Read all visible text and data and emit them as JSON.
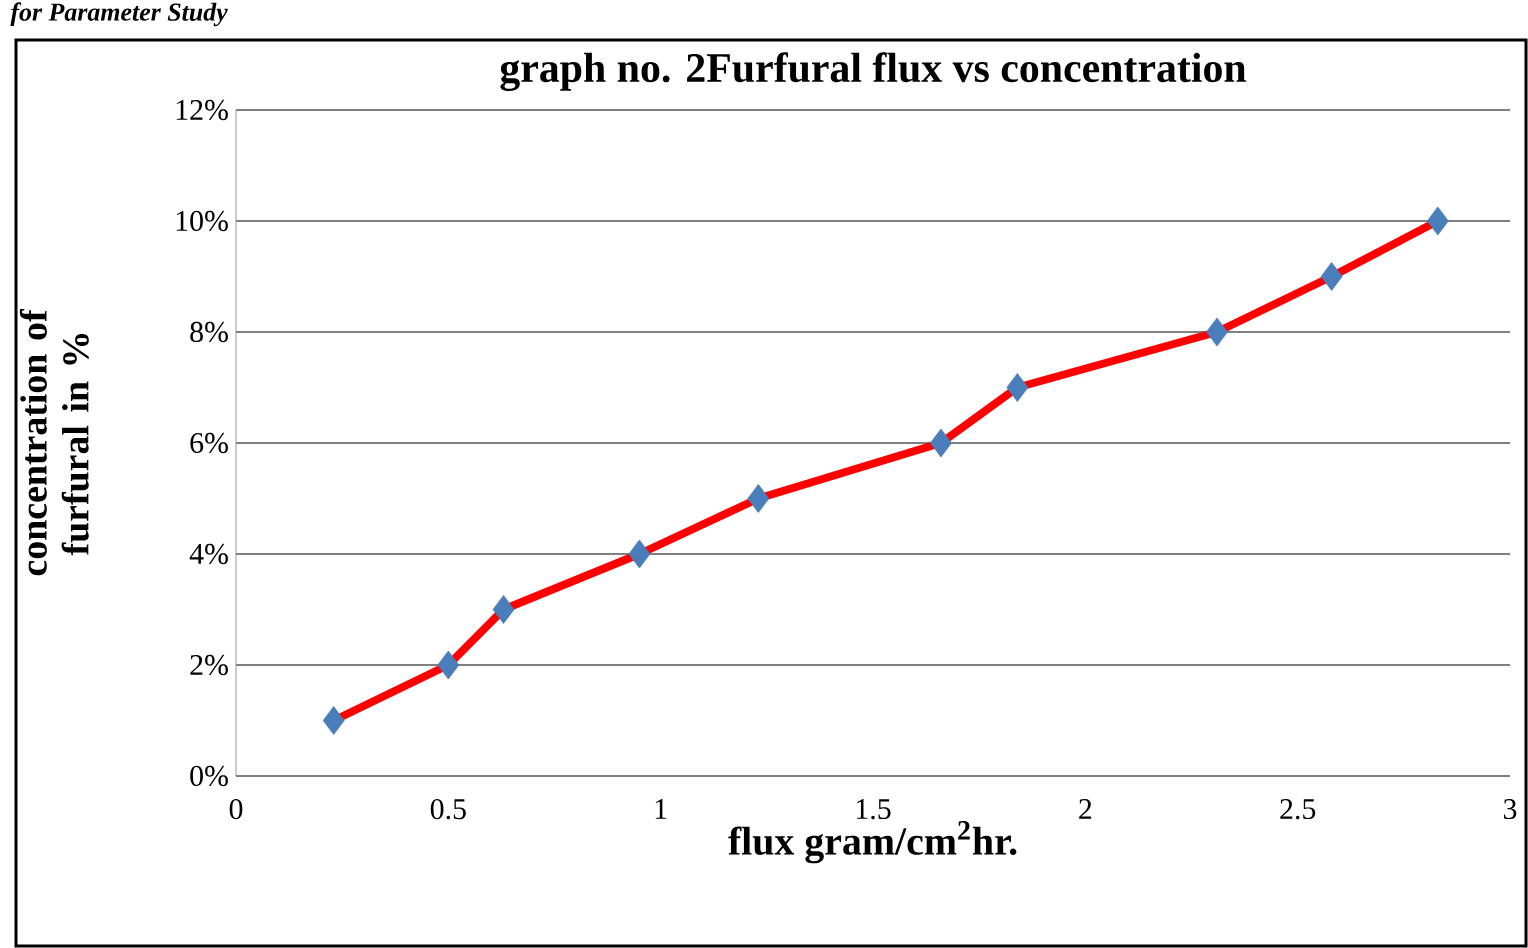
{
  "chart_data": {
    "type": "line",
    "title": "graph no. 2Furfural flux vs concentration",
    "xlabel": "flux gram/cm$^{2}$hr.",
    "ylabel": "concentration of furfural in %",
    "annotations": [
      "for Parameter Study"
    ],
    "x": [
      0.23,
      0.5,
      0.63,
      0.95,
      1.23,
      1.66,
      1.84,
      2.31,
      2.58,
      2.83
    ],
    "series": [
      {
        "color": "#ff0000",
        "colors": [
          "#4a7ebb",
          "#4a7ebb",
          "#4a7ebb",
          "#4a7ebb",
          "#4a7ebb",
          "#4a7ebb",
          "#4a7ebb",
          "#4a7ebb",
          "#4a7ebb",
          "#4a7ebb"
        ],
        "values": [
          1,
          2,
          3,
          4,
          5,
          6,
          7,
          8,
          9,
          10
        ]
      }
    ],
    "marker": "diamond",
    "line_style": "solid",
    "grid": "y",
    "xlim": [
      0,
      3
    ],
    "xticks": [
      0,
      0.5,
      1,
      1.5,
      2,
      2.5,
      3
    ],
    "ylim": [
      0,
      12
    ],
    "yticks": [
      {
        "value": 0,
        "label": "0%"
      },
      {
        "value": 2,
        "label": "2%"
      },
      {
        "value": 4,
        "label": "4%"
      },
      {
        "value": 6,
        "label": "6%"
      },
      {
        "value": 8,
        "label": "8%"
      },
      {
        "value": 10,
        "label": "10%"
      },
      {
        "value": 12,
        "label": "12%"
      }
    ]
  }
}
